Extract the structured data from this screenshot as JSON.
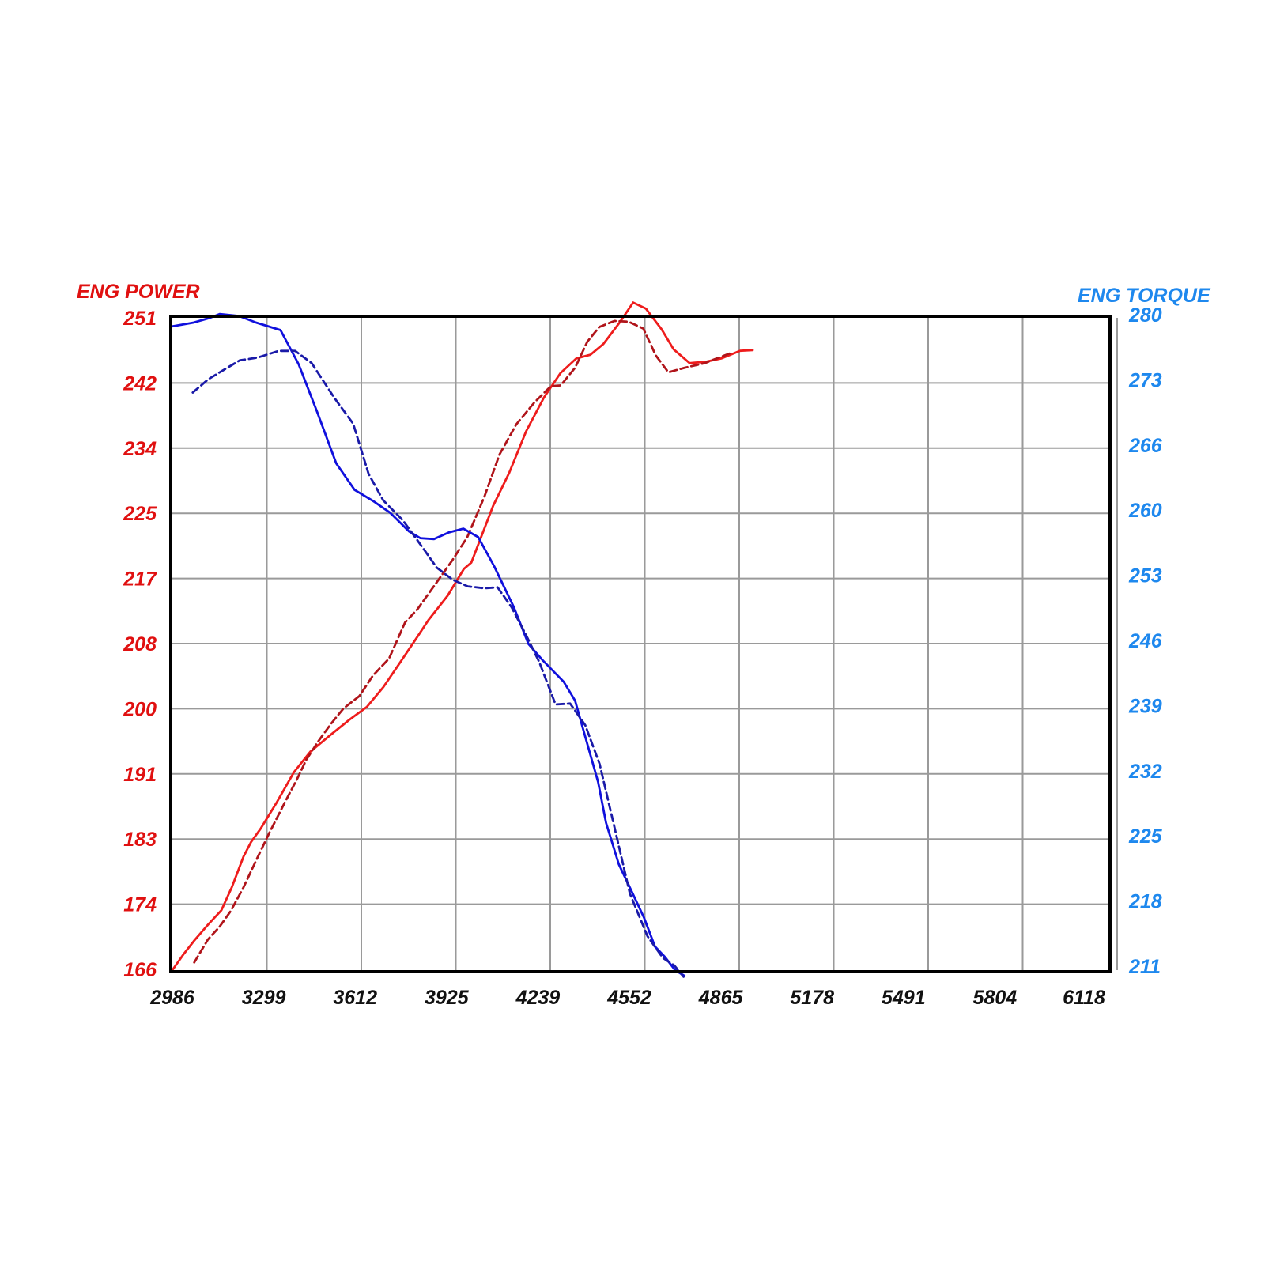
{
  "chart_data": {
    "type": "line",
    "left_axis_title": "ENG POWER",
    "right_axis_title": "ENG TORQUE",
    "x_ticks": [
      "2986",
      "3299",
      "3612",
      "3925",
      "4239",
      "4552",
      "4865",
      "5178",
      "5491",
      "5804",
      "6118"
    ],
    "left_ticks": [
      "251",
      "242",
      "234",
      "225",
      "217",
      "208",
      "200",
      "191",
      "183",
      "174",
      "166"
    ],
    "right_ticks": [
      "280",
      "273",
      "266",
      "260",
      "253",
      "246",
      "239",
      "232",
      "225",
      "218",
      "211"
    ],
    "xlim": [
      2986,
      6196
    ],
    "ylim_left": [
      166,
      251
    ],
    "ylim_right": [
      211,
      280
    ],
    "grid": true,
    "colors": {
      "power": "#ee1c1c",
      "power_dashed": "#b0141a",
      "torque": "#1010dd",
      "torque_dashed": "#1a1aa8",
      "left_labels": "#e01010",
      "right_labels": "#1e88ee"
    },
    "series": [
      {
        "axis": "left",
        "style": "solid",
        "color": "#ee1c1c",
        "points": [
          [
            2986,
            166.0
          ],
          [
            3025,
            168.1
          ],
          [
            3060,
            169.8
          ],
          [
            3110,
            172.0
          ],
          [
            3154,
            173.8
          ],
          [
            3190,
            176.8
          ],
          [
            3230,
            180.8
          ],
          [
            3256,
            182.7
          ],
          [
            3290,
            184.5
          ],
          [
            3343,
            187.8
          ],
          [
            3403,
            191.8
          ],
          [
            3460,
            194.5
          ],
          [
            3530,
            196.7
          ],
          [
            3592,
            198.6
          ],
          [
            3653,
            200.3
          ],
          [
            3710,
            202.9
          ],
          [
            3769,
            206.2
          ],
          [
            3822,
            209.2
          ],
          [
            3864,
            211.6
          ],
          [
            3930,
            214.8
          ],
          [
            3986,
            218.3
          ],
          [
            4011,
            219.1
          ],
          [
            4086,
            226.5
          ],
          [
            4141,
            230.8
          ],
          [
            4199,
            236.2
          ],
          [
            4260,
            240.6
          ],
          [
            4317,
            243.8
          ],
          [
            4371,
            245.7
          ],
          [
            4420,
            246.2
          ],
          [
            4464,
            247.6
          ],
          [
            4520,
            250.4
          ],
          [
            4566,
            253.0
          ],
          [
            4610,
            252.2
          ],
          [
            4664,
            249.5
          ],
          [
            4705,
            246.9
          ],
          [
            4760,
            245.1
          ],
          [
            4819,
            245.3
          ],
          [
            4868,
            245.7
          ],
          [
            4933,
            246.7
          ],
          [
            4976,
            246.8
          ]
        ]
      },
      {
        "axis": "left",
        "style": "dashed",
        "color": "#b0141a",
        "points": [
          [
            3061,
            167.0
          ],
          [
            3108,
            170.0
          ],
          [
            3147,
            171.6
          ],
          [
            3186,
            173.7
          ],
          [
            3229,
            176.7
          ],
          [
            3272,
            180.2
          ],
          [
            3320,
            184.0
          ],
          [
            3375,
            188.1
          ],
          [
            3415,
            191.0
          ],
          [
            3445,
            193.4
          ],
          [
            3486,
            195.8
          ],
          [
            3532,
            198.2
          ],
          [
            3573,
            200.1
          ],
          [
            3627,
            201.7
          ],
          [
            3674,
            204.4
          ],
          [
            3729,
            206.6
          ],
          [
            3784,
            211.3
          ],
          [
            3826,
            213.0
          ],
          [
            3890,
            216.4
          ],
          [
            3946,
            219.4
          ],
          [
            3997,
            222.4
          ],
          [
            4056,
            227.7
          ],
          [
            4108,
            233.2
          ],
          [
            4165,
            237.1
          ],
          [
            4228,
            240.0
          ],
          [
            4284,
            242.1
          ],
          [
            4318,
            242.2
          ],
          [
            4367,
            244.5
          ],
          [
            4409,
            247.9
          ],
          [
            4450,
            249.8
          ],
          [
            4502,
            250.6
          ],
          [
            4551,
            250.5
          ],
          [
            4601,
            249.6
          ],
          [
            4644,
            246.1
          ],
          [
            4687,
            243.9
          ],
          [
            4743,
            244.5
          ],
          [
            4812,
            245.1
          ],
          [
            4852,
            245.7
          ],
          [
            4901,
            246.4
          ]
        ]
      },
      {
        "axis": "right",
        "style": "solid",
        "color": "#1010dd",
        "points": [
          [
            2986,
            279.1
          ],
          [
            3059,
            279.5
          ],
          [
            3115,
            280.0
          ],
          [
            3148,
            280.4
          ],
          [
            3214,
            280.2
          ],
          [
            3273,
            279.5
          ],
          [
            3357,
            278.7
          ],
          [
            3419,
            275.1
          ],
          [
            3482,
            270.1
          ],
          [
            3548,
            264.6
          ],
          [
            3611,
            261.8
          ],
          [
            3676,
            260.6
          ],
          [
            3732,
            259.4
          ],
          [
            3798,
            257.4
          ],
          [
            3836,
            256.7
          ],
          [
            3883,
            256.6
          ],
          [
            3934,
            257.3
          ],
          [
            3984,
            257.7
          ],
          [
            4035,
            256.8
          ],
          [
            4090,
            253.7
          ],
          [
            4157,
            249.4
          ],
          [
            4207,
            245.5
          ],
          [
            4255,
            243.8
          ],
          [
            4328,
            241.5
          ],
          [
            4367,
            239.5
          ],
          [
            4399,
            236.0
          ],
          [
            4446,
            230.9
          ],
          [
            4473,
            226.6
          ],
          [
            4517,
            222.2
          ],
          [
            4560,
            219.4
          ],
          [
            4604,
            216.5
          ],
          [
            4641,
            213.5
          ],
          [
            4675,
            212.4
          ],
          [
            4710,
            211.0
          ],
          [
            4742,
            210.4
          ]
        ]
      },
      {
        "axis": "right",
        "style": "dashed",
        "color": "#1a1aa8",
        "points": [
          [
            3056,
            272.1
          ],
          [
            3109,
            273.5
          ],
          [
            3157,
            274.4
          ],
          [
            3217,
            275.5
          ],
          [
            3279,
            275.8
          ],
          [
            3351,
            276.5
          ],
          [
            3407,
            276.5
          ],
          [
            3464,
            275.2
          ],
          [
            3540,
            271.6
          ],
          [
            3606,
            268.8
          ],
          [
            3659,
            263.5
          ],
          [
            3709,
            260.7
          ],
          [
            3776,
            258.6
          ],
          [
            3842,
            255.8
          ],
          [
            3892,
            253.6
          ],
          [
            3947,
            252.3
          ],
          [
            3999,
            251.6
          ],
          [
            4056,
            251.4
          ],
          [
            4101,
            251.5
          ],
          [
            4149,
            249.4
          ],
          [
            4198,
            246.5
          ],
          [
            4244,
            243.6
          ],
          [
            4300,
            239.1
          ],
          [
            4350,
            239.2
          ],
          [
            4402,
            236.9
          ],
          [
            4451,
            232.8
          ],
          [
            4500,
            226.4
          ],
          [
            4555,
            219.1
          ],
          [
            4615,
            214.6
          ],
          [
            4668,
            212.3
          ],
          [
            4707,
            211.5
          ],
          [
            4739,
            210.3
          ]
        ]
      }
    ]
  }
}
